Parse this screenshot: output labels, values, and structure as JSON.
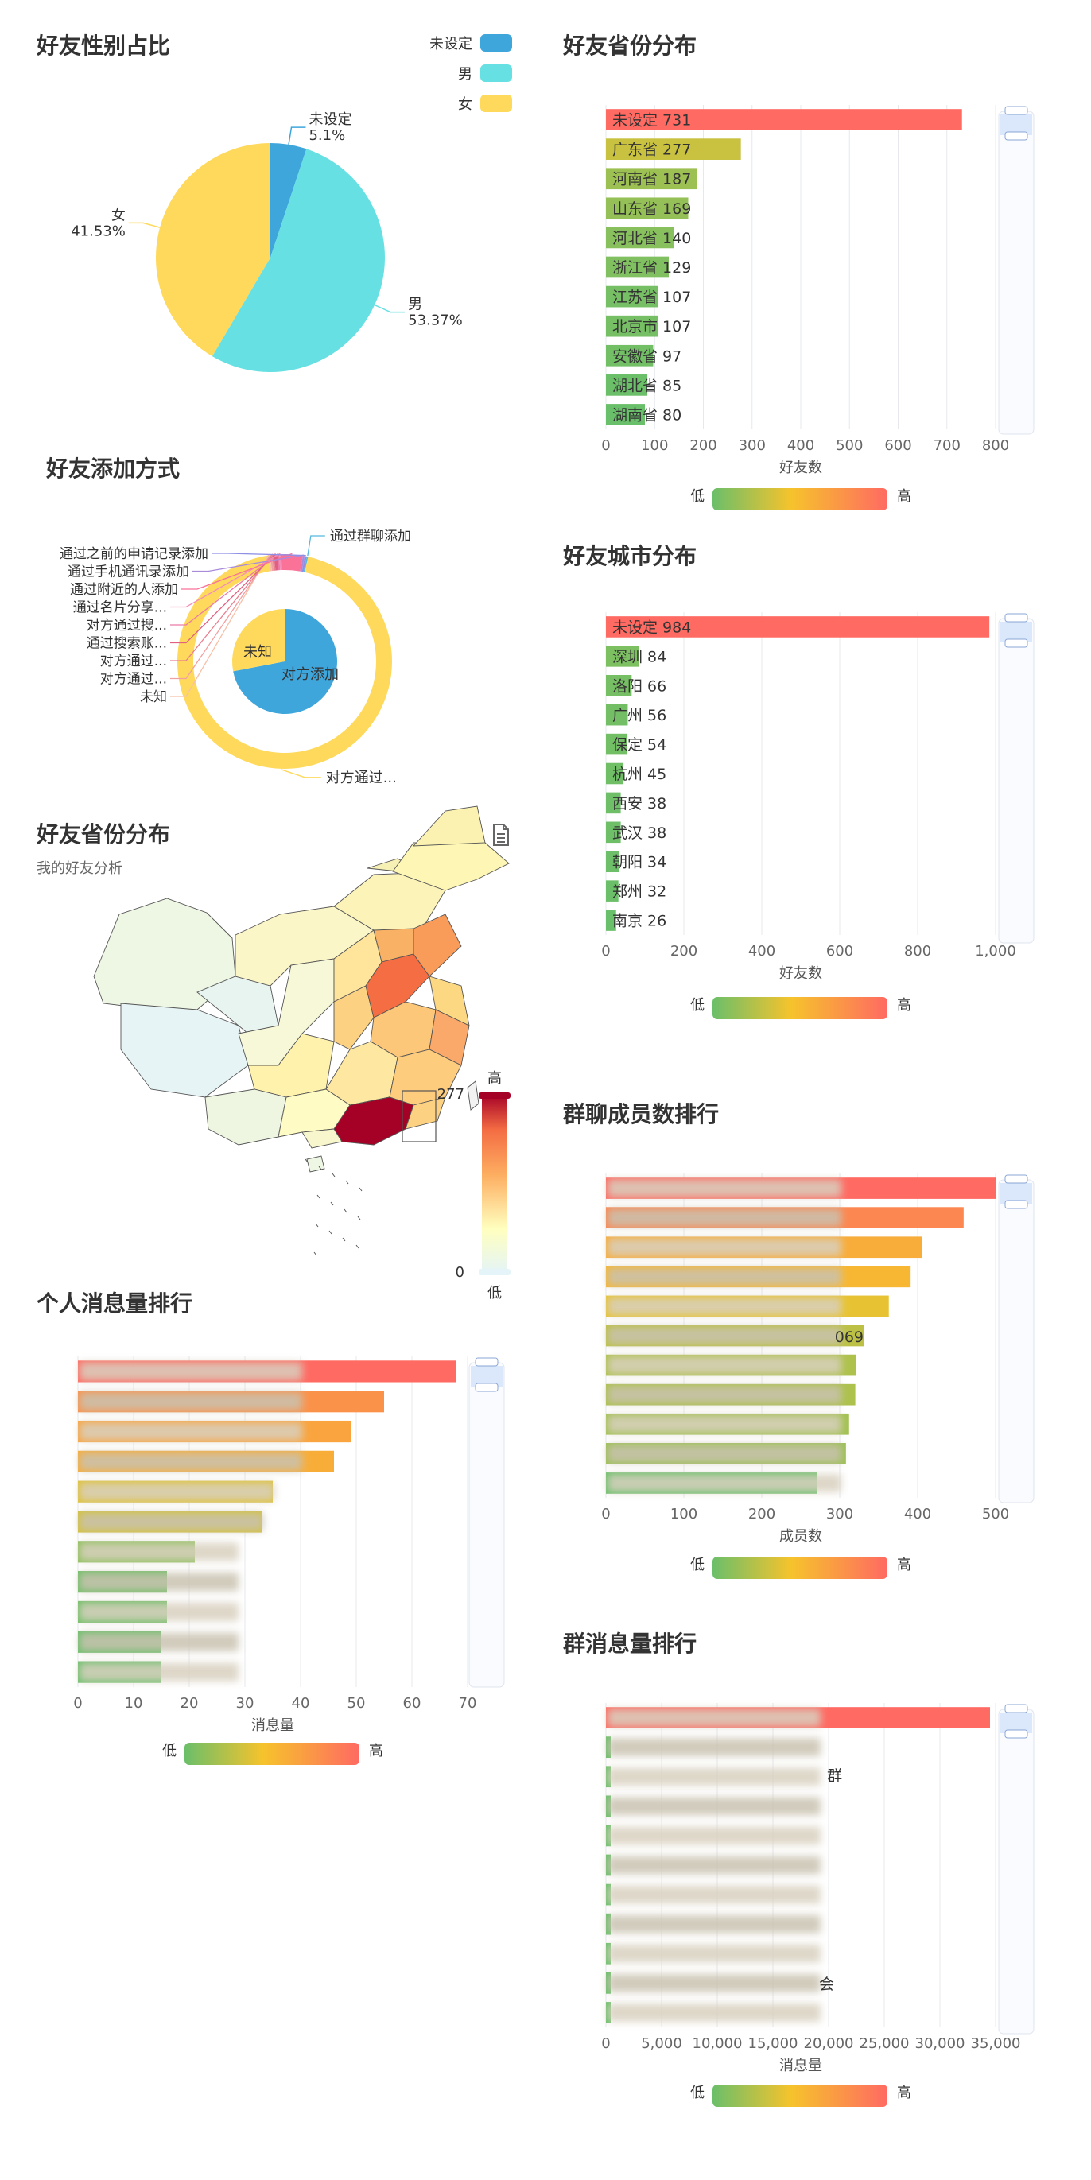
{
  "titles": {
    "gender": "好友性别占比",
    "add_method": "好友添加方式",
    "map": "好友省份分布",
    "map_sub": "我的好友分析",
    "personal_msg": "个人消息量排行",
    "province_bar": "好友省份分布",
    "city_bar": "好友城市分布",
    "group_members": "群聊成员数排行",
    "group_msg": "群消息量排行"
  },
  "visual_map": {
    "low": "低",
    "high": "高"
  },
  "chart_data": [
    {
      "id": "gender",
      "type": "pie",
      "title": "好友性别占比",
      "legend": [
        "未设定",
        "男",
        "女"
      ],
      "legend_position": "top-right",
      "slices": [
        {
          "name": "未设定",
          "label": "未设定",
          "percent_label": "5.1%",
          "value": 5.1,
          "color": "#3fa6dc"
        },
        {
          "name": "男",
          "label": "男",
          "percent_label": "53.37%",
          "value": 53.37,
          "color": "#66e0e2"
        },
        {
          "name": "女",
          "label": "女",
          "percent_label": "41.53%",
          "value": 41.53,
          "color": "#fed95c"
        }
      ]
    },
    {
      "id": "add_method",
      "type": "pie",
      "title": "好友添加方式",
      "inner": [
        {
          "name": "对方添加",
          "value": 72,
          "color": "#3fa6dc"
        },
        {
          "name": "未知",
          "value": 28,
          "color": "#fed95c"
        }
      ],
      "outer": [
        {
          "name": "对方通过...",
          "value": 94,
          "color": "#fed95c"
        },
        {
          "name": "未知",
          "value": 0.3,
          "color": "#f7c0a8"
        },
        {
          "name": "对方通过...",
          "value": 0.3,
          "color": "#f0a0a0"
        },
        {
          "name": "对方通过...",
          "value": 0.3,
          "color": "#e87f8f"
        },
        {
          "name": "通过搜索账...",
          "value": 0.5,
          "color": "#e06080"
        },
        {
          "name": "对方通过搜...",
          "value": 0.3,
          "color": "#ec7aa6"
        },
        {
          "name": "通过名片分享...",
          "value": 0.3,
          "color": "#f38eb8"
        },
        {
          "name": "通过附近的人添加",
          "value": 3.2,
          "color": "#fb7299"
        },
        {
          "name": "通过手机通讯录添加",
          "value": 0.3,
          "color": "#a98bdc"
        },
        {
          "name": "通过之前的申请记录添加",
          "value": 0.3,
          "color": "#8f8fe8"
        },
        {
          "name": "通过群聊添加",
          "value": 0.2,
          "color": "#56b8e0"
        }
      ]
    },
    {
      "id": "map",
      "type": "heatmap",
      "title": "好友省份分布",
      "subtitle": "我的好友分析",
      "visual_min": 0,
      "visual_max": 277,
      "visual_high_label": "高",
      "visual_low_label": "低",
      "visual_min_label": "0",
      "visual_max_label": "277"
    },
    {
      "id": "personal_msg",
      "type": "bar",
      "title": "个人消息量排行",
      "xlabel": "消息量",
      "xlim": [
        0,
        70
      ],
      "xticks": [
        0,
        10,
        20,
        30,
        40,
        50,
        60,
        70
      ],
      "values": [
        68,
        55,
        49,
        46,
        35,
        33,
        21,
        16,
        16,
        15,
        15
      ]
    },
    {
      "id": "province_bar",
      "type": "bar",
      "title": "好友省份分布",
      "xlabel": "好友数",
      "xlim": [
        0,
        800
      ],
      "xticks": [
        "0",
        "100",
        "200",
        "300",
        "400",
        "500",
        "600",
        "700",
        "800"
      ],
      "categories": [
        "未设定",
        "广东省",
        "河南省",
        "山东省",
        "河北省",
        "浙江省",
        "江苏省",
        "北京市",
        "安徽省",
        "湖北省",
        "湖南省"
      ],
      "values": [
        731,
        277,
        187,
        169,
        140,
        129,
        107,
        107,
        97,
        85,
        80
      ]
    },
    {
      "id": "city_bar",
      "type": "bar",
      "title": "好友城市分布",
      "xlabel": "好友数",
      "xlim": [
        0,
        1000
      ],
      "xticks": [
        "0",
        "200",
        "400",
        "600",
        "800",
        "1,000"
      ],
      "categories": [
        "未设定",
        "深圳",
        "洛阳",
        "广州",
        "保定",
        "杭州",
        "西安",
        "武汉",
        "朝阳",
        "郑州",
        "南京"
      ],
      "values": [
        984,
        84,
        66,
        56,
        54,
        45,
        38,
        38,
        34,
        32,
        26
      ]
    },
    {
      "id": "group_members",
      "type": "bar",
      "title": "群聊成员数排行",
      "xlabel": "成员数",
      "xlim": [
        0,
        500
      ],
      "xticks": [
        "0",
        "100",
        "200",
        "300",
        "400",
        "500"
      ],
      "values": [
        500,
        459,
        406,
        391,
        363,
        331,
        321,
        320,
        312,
        308,
        271
      ],
      "visible_label_fragment": "069"
    },
    {
      "id": "group_msg",
      "type": "bar",
      "title": "群消息量排行",
      "xlabel": "消息量",
      "xlim": [
        0,
        35000
      ],
      "xticks": [
        "0",
        "5,000",
        "10,000",
        "15,000",
        "20,000",
        "25,000",
        "30,000",
        "35,000"
      ],
      "values": [
        34500,
        320,
        300,
        280,
        260,
        240,
        220,
        200,
        190,
        180,
        170
      ],
      "visible_label_fragments": [
        "群",
        "会"
      ]
    }
  ]
}
